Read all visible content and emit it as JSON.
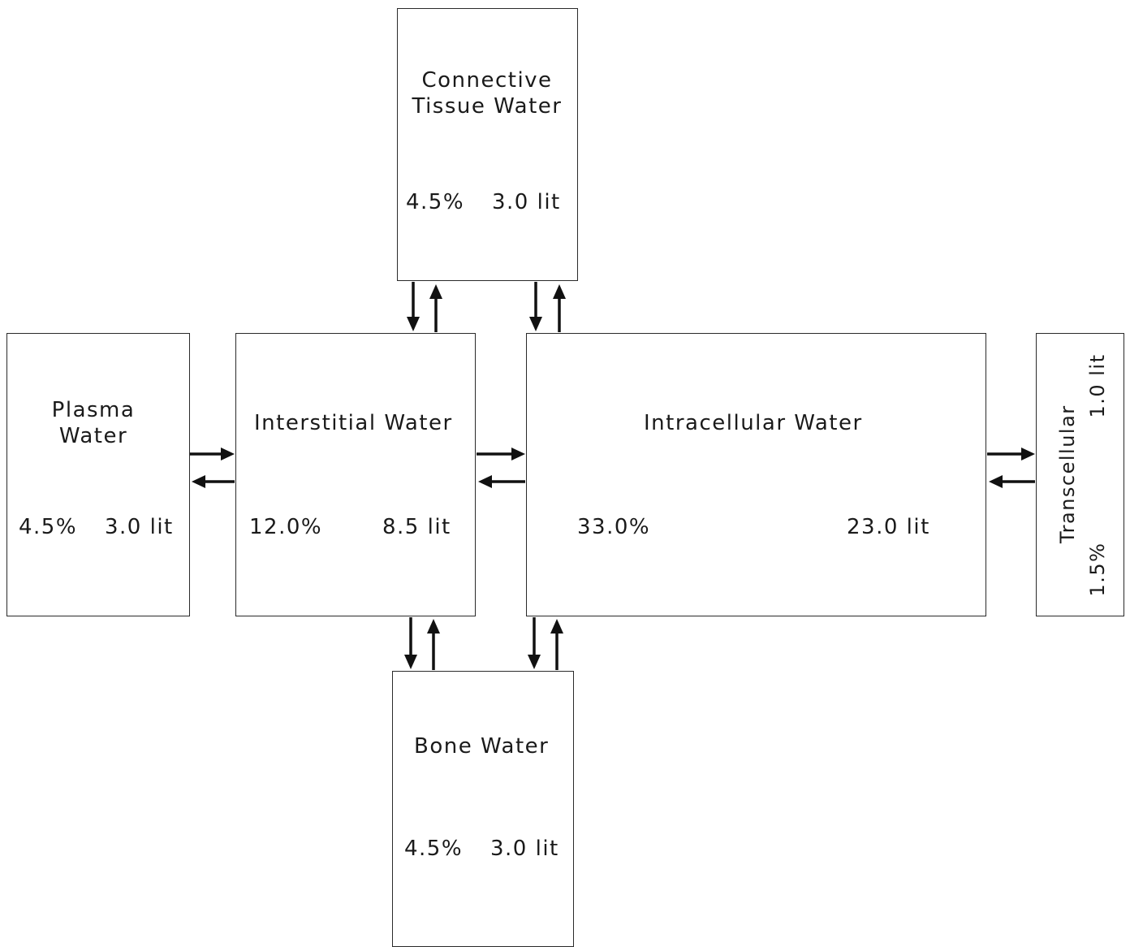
{
  "compartments": {
    "connective": {
      "name_line1": "Connective",
      "name_line2": "Tissue  Water",
      "percent": "4.5%",
      "volume": "3.0 lit"
    },
    "plasma": {
      "name_line1": "Plasma",
      "name_line2": "Water",
      "percent": "4.5%",
      "volume": "3.0 lit"
    },
    "interstitial": {
      "name": "Interstitial  Water",
      "percent": "12.0%",
      "volume": "8.5 lit"
    },
    "intracellular": {
      "name": "Intracellular  Water",
      "percent": "33.0%",
      "volume": "23.0 lit"
    },
    "transcellular": {
      "name": "Transcellular",
      "percent": "1.5%",
      "volume": "1.0 lit"
    },
    "bone": {
      "name": "Bone  Water",
      "percent": "4.5%",
      "volume": "3.0 lit"
    }
  },
  "colors": {
    "line": "#2a2a2a",
    "arrow": "#111111",
    "text": "#1a1a1a"
  }
}
